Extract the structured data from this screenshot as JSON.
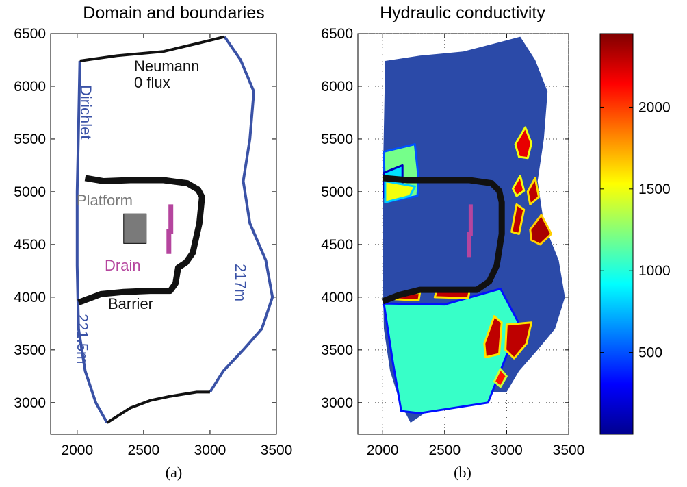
{
  "panels": [
    {
      "title": "Domain and boundaries",
      "caption": "(a)",
      "annotations": {
        "neumann": "Neumann",
        "zero_flux": "0 flux",
        "dirichlet": "Dirichlet",
        "platform": "Platform",
        "drain": "Drain",
        "barrier": "Barrier",
        "right_head": "217m",
        "left_head": "221.5m"
      }
    },
    {
      "title": "Hydraulic conductivity",
      "caption": "(b)"
    }
  ],
  "colors": {
    "dirichlet": "#3a52a6",
    "neumann": "#111111",
    "barrier": "#111111",
    "platform": "#7a7a7a",
    "drain": "#b5459e",
    "domain_fill": "#2b4aa8"
  },
  "chart_data": [
    {
      "type": "line",
      "title": "Domain and boundaries",
      "xlim": [
        1800,
        3500
      ],
      "ylim": [
        2700,
        6500
      ],
      "xticks": [
        2000,
        2500,
        3000,
        3500
      ],
      "yticks": [
        3000,
        3500,
        4000,
        4500,
        5000,
        5500,
        6000,
        6500
      ],
      "grid": false,
      "series": [
        {
          "name": "Dirichlet",
          "points": [
            [
              2020,
              6240
            ],
            [
              2010,
              5600
            ],
            [
              2000,
              5000
            ],
            [
              2000,
              4300
            ],
            [
              2010,
              3700
            ],
            [
              2060,
              3300
            ],
            [
              2140,
              3000
            ],
            [
              2225,
              2810
            ]
          ]
        },
        {
          "name": "Neumann",
          "points": [
            [
              2020,
              6240
            ],
            [
              2300,
              6290
            ],
            [
              2650,
              6330
            ],
            [
              2950,
              6420
            ],
            [
              3110,
              6470
            ]
          ]
        },
        {
          "name": "217m",
          "points": [
            [
              3110,
              6470
            ],
            [
              3230,
              6250
            ],
            [
              3330,
              5950
            ],
            [
              3300,
              5500
            ],
            [
              3250,
              5100
            ],
            [
              3300,
              4700
            ],
            [
              3420,
              4350
            ],
            [
              3470,
              4000
            ],
            [
              3390,
              3700
            ],
            [
              3250,
              3500
            ],
            [
              3100,
              3300
            ],
            [
              3000,
              3100
            ]
          ]
        },
        {
          "name": "0 flux",
          "points": [
            [
              3000,
              3100
            ],
            [
              2900,
              3100
            ],
            [
              2700,
              3060
            ],
            [
              2550,
              3020
            ],
            [
              2400,
              2950
            ],
            [
              2225,
              2810
            ]
          ]
        },
        {
          "name": "Barrier",
          "points": [
            [
              2060,
              5130
            ],
            [
              2200,
              5100
            ],
            [
              2400,
              5110
            ],
            [
              2650,
              5110
            ],
            [
              2830,
              5080
            ],
            [
              2910,
              5020
            ],
            [
              2940,
              4950
            ],
            [
              2920,
              4700
            ],
            [
              2870,
              4420
            ],
            [
              2820,
              4330
            ],
            [
              2760,
              4280
            ],
            [
              2740,
              4130
            ],
            [
              2700,
              4060
            ],
            [
              2550,
              4060
            ],
            [
              2350,
              4050
            ],
            [
              2180,
              4030
            ],
            [
              2010,
              3950
            ]
          ]
        },
        {
          "name": "Platform",
          "rect": [
            2350,
            4510,
            2520,
            4790
          ]
        },
        {
          "name": "Drain",
          "points": [
            [
              2705,
              4880
            ],
            [
              2705,
              4620
            ],
            [
              2690,
              4620
            ],
            [
              2690,
              4410
            ]
          ]
        }
      ]
    },
    {
      "type": "heatmap",
      "title": "Hydraulic conductivity",
      "xlim": [
        1800,
        3500
      ],
      "ylim": [
        2700,
        6500
      ],
      "xticks": [
        2000,
        2500,
        3000,
        3500
      ],
      "yticks": [
        3000,
        3500,
        4000,
        4500,
        5000,
        5500,
        6000,
        6500
      ],
      "grid": true,
      "colorbar": {
        "range": [
          0,
          2450
        ],
        "ticks": [
          500,
          1000,
          1500,
          2000
        ]
      },
      "regions": [
        {
          "value": 1050,
          "points": [
            [
              2010,
              3940
            ],
            [
              2500,
              3930
            ],
            [
              2950,
              4080
            ],
            [
              3100,
              3750
            ],
            [
              2850,
              3000
            ],
            [
              2300,
              2900
            ],
            [
              2150,
              2920
            ],
            [
              2080,
              3400
            ]
          ]
        },
        {
          "value": 1200,
          "points": [
            [
              2010,
              5380
            ],
            [
              2260,
              5450
            ],
            [
              2290,
              5120
            ],
            [
              2280,
              4960
            ],
            [
              2020,
              4900
            ]
          ]
        },
        {
          "value": 850,
          "points": [
            [
              2010,
              5180
            ],
            [
              2160,
              5250
            ],
            [
              2160,
              5050
            ],
            [
              2010,
              4950
            ]
          ]
        },
        {
          "value": 1500,
          "points": [
            [
              2020,
              4900
            ],
            [
              2220,
              4960
            ],
            [
              2260,
              5050
            ],
            [
              2020,
              5100
            ]
          ]
        },
        {
          "value": 2300,
          "points": [
            [
              2100,
              3980
            ],
            [
              2290,
              3970
            ],
            [
              2300,
              4040
            ],
            [
              2120,
              4040
            ]
          ]
        },
        {
          "value": 2300,
          "points": [
            [
              2420,
              4000
            ],
            [
              2690,
              3990
            ],
            [
              2700,
              4060
            ],
            [
              2440,
              4070
            ]
          ]
        },
        {
          "value": 2300,
          "points": [
            [
              2820,
              3560
            ],
            [
              2900,
              3820
            ],
            [
              2960,
              3760
            ],
            [
              2940,
              3460
            ],
            [
              2830,
              3430
            ]
          ]
        },
        {
          "value": 2300,
          "points": [
            [
              3000,
              3740
            ],
            [
              3200,
              3760
            ],
            [
              3160,
              3560
            ],
            [
              3060,
              3420
            ],
            [
              2990,
              3500
            ]
          ]
        },
        {
          "value": 2200,
          "points": [
            [
              3070,
              5450
            ],
            [
              3150,
              5610
            ],
            [
              3200,
              5460
            ],
            [
              3170,
              5320
            ],
            [
              3100,
              5330
            ]
          ]
        },
        {
          "value": 2200,
          "points": [
            [
              3050,
              5030
            ],
            [
              3110,
              5150
            ],
            [
              3140,
              5010
            ],
            [
              3080,
              4960
            ]
          ]
        },
        {
          "value": 2300,
          "points": [
            [
              3170,
              5000
            ],
            [
              3230,
              5130
            ],
            [
              3260,
              4950
            ],
            [
              3190,
              4880
            ]
          ]
        },
        {
          "value": 2300,
          "points": [
            [
              3040,
              4620
            ],
            [
              3080,
              4880
            ],
            [
              3140,
              4830
            ],
            [
              3100,
              4600
            ]
          ]
        },
        {
          "value": 2350,
          "points": [
            [
              3190,
              4640
            ],
            [
              3280,
              4780
            ],
            [
              3360,
              4600
            ],
            [
              3270,
              4500
            ],
            [
              3200,
              4540
            ]
          ]
        },
        {
          "value": 2100,
          "points": [
            [
              2900,
              3200
            ],
            [
              2950,
              3320
            ],
            [
              3000,
              3250
            ],
            [
              2950,
              3150
            ]
          ]
        }
      ],
      "series": [
        {
          "name": "Barrier",
          "points": [
            [
              2000,
              5130
            ],
            [
              2200,
              5110
            ],
            [
              2450,
              5110
            ],
            [
              2700,
              5110
            ],
            [
              2880,
              5080
            ],
            [
              2940,
              5010
            ],
            [
              2960,
              4900
            ],
            [
              2960,
              4600
            ],
            [
              2920,
              4300
            ],
            [
              2860,
              4150
            ],
            [
              2760,
              4070
            ],
            [
              2550,
              4070
            ],
            [
              2300,
              4070
            ],
            [
              2130,
              4020
            ],
            [
              2000,
              3960
            ]
          ]
        },
        {
          "name": "Drain",
          "points": [
            [
              2710,
              4880
            ],
            [
              2710,
              4600
            ],
            [
              2695,
              4600
            ],
            [
              2695,
              4380
            ]
          ]
        }
      ]
    }
  ]
}
